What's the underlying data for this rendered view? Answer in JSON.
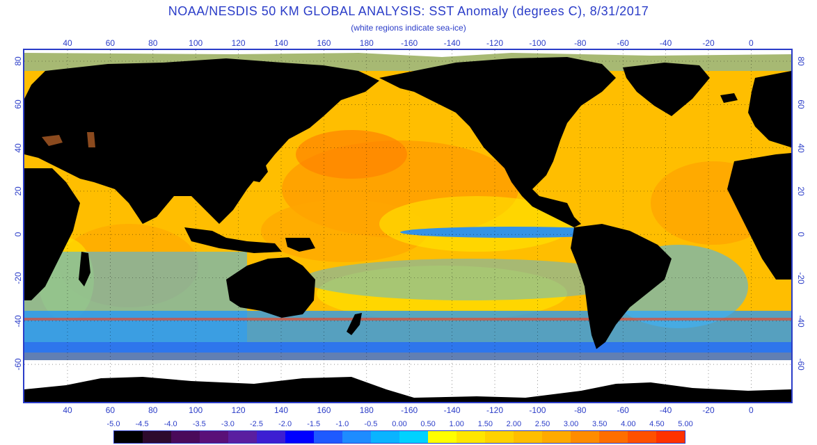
{
  "title": "NOAA/NESDIS 50 KM GLOBAL ANALYSIS: SST Anomaly (degrees C), 8/31/2017",
  "subtitle": "(white regions indicate sea-ice)",
  "longitude_ticks": [
    "40",
    "60",
    "80",
    "100",
    "120",
    "140",
    "160",
    "180",
    "-160",
    "-140",
    "-120",
    "-100",
    "-80",
    "-60",
    "-40",
    "-20",
    "0"
  ],
  "latitude_ticks": [
    "80",
    "60",
    "40",
    "20",
    "0",
    "-20",
    "-40",
    "-60"
  ],
  "colorbar": {
    "labels": [
      "-5.0",
      "-4.5",
      "-4.0",
      "-3.5",
      "-3.0",
      "-2.5",
      "-2.0",
      "-1.5",
      "-1.0",
      "-0.5",
      "0.00",
      "0.50",
      "1.00",
      "1.50",
      "2.00",
      "2.50",
      "3.00",
      "3.50",
      "4.00",
      "4.50",
      "5.00"
    ],
    "colors": [
      "#000000",
      "#2d0a2d",
      "#4a0a5a",
      "#5a1078",
      "#5a1ea0",
      "#3c1ed2",
      "#0000ff",
      "#1e5aff",
      "#1e8cff",
      "#0ab4ff",
      "#00d2ff",
      "#ffff00",
      "#ffe600",
      "#ffd200",
      "#ffbe00",
      "#ffaa00",
      "#ff8c00",
      "#ff6e00",
      "#ff5000",
      "#ff3200"
    ]
  },
  "colors": {
    "axis": "#2a3cc8",
    "land": "#000000",
    "sea_ice": "#ffffff",
    "warm_anomaly": "#ffb400",
    "cool_anomaly": "#1ea0ff",
    "strong_warm": "#ff5a1e"
  }
}
